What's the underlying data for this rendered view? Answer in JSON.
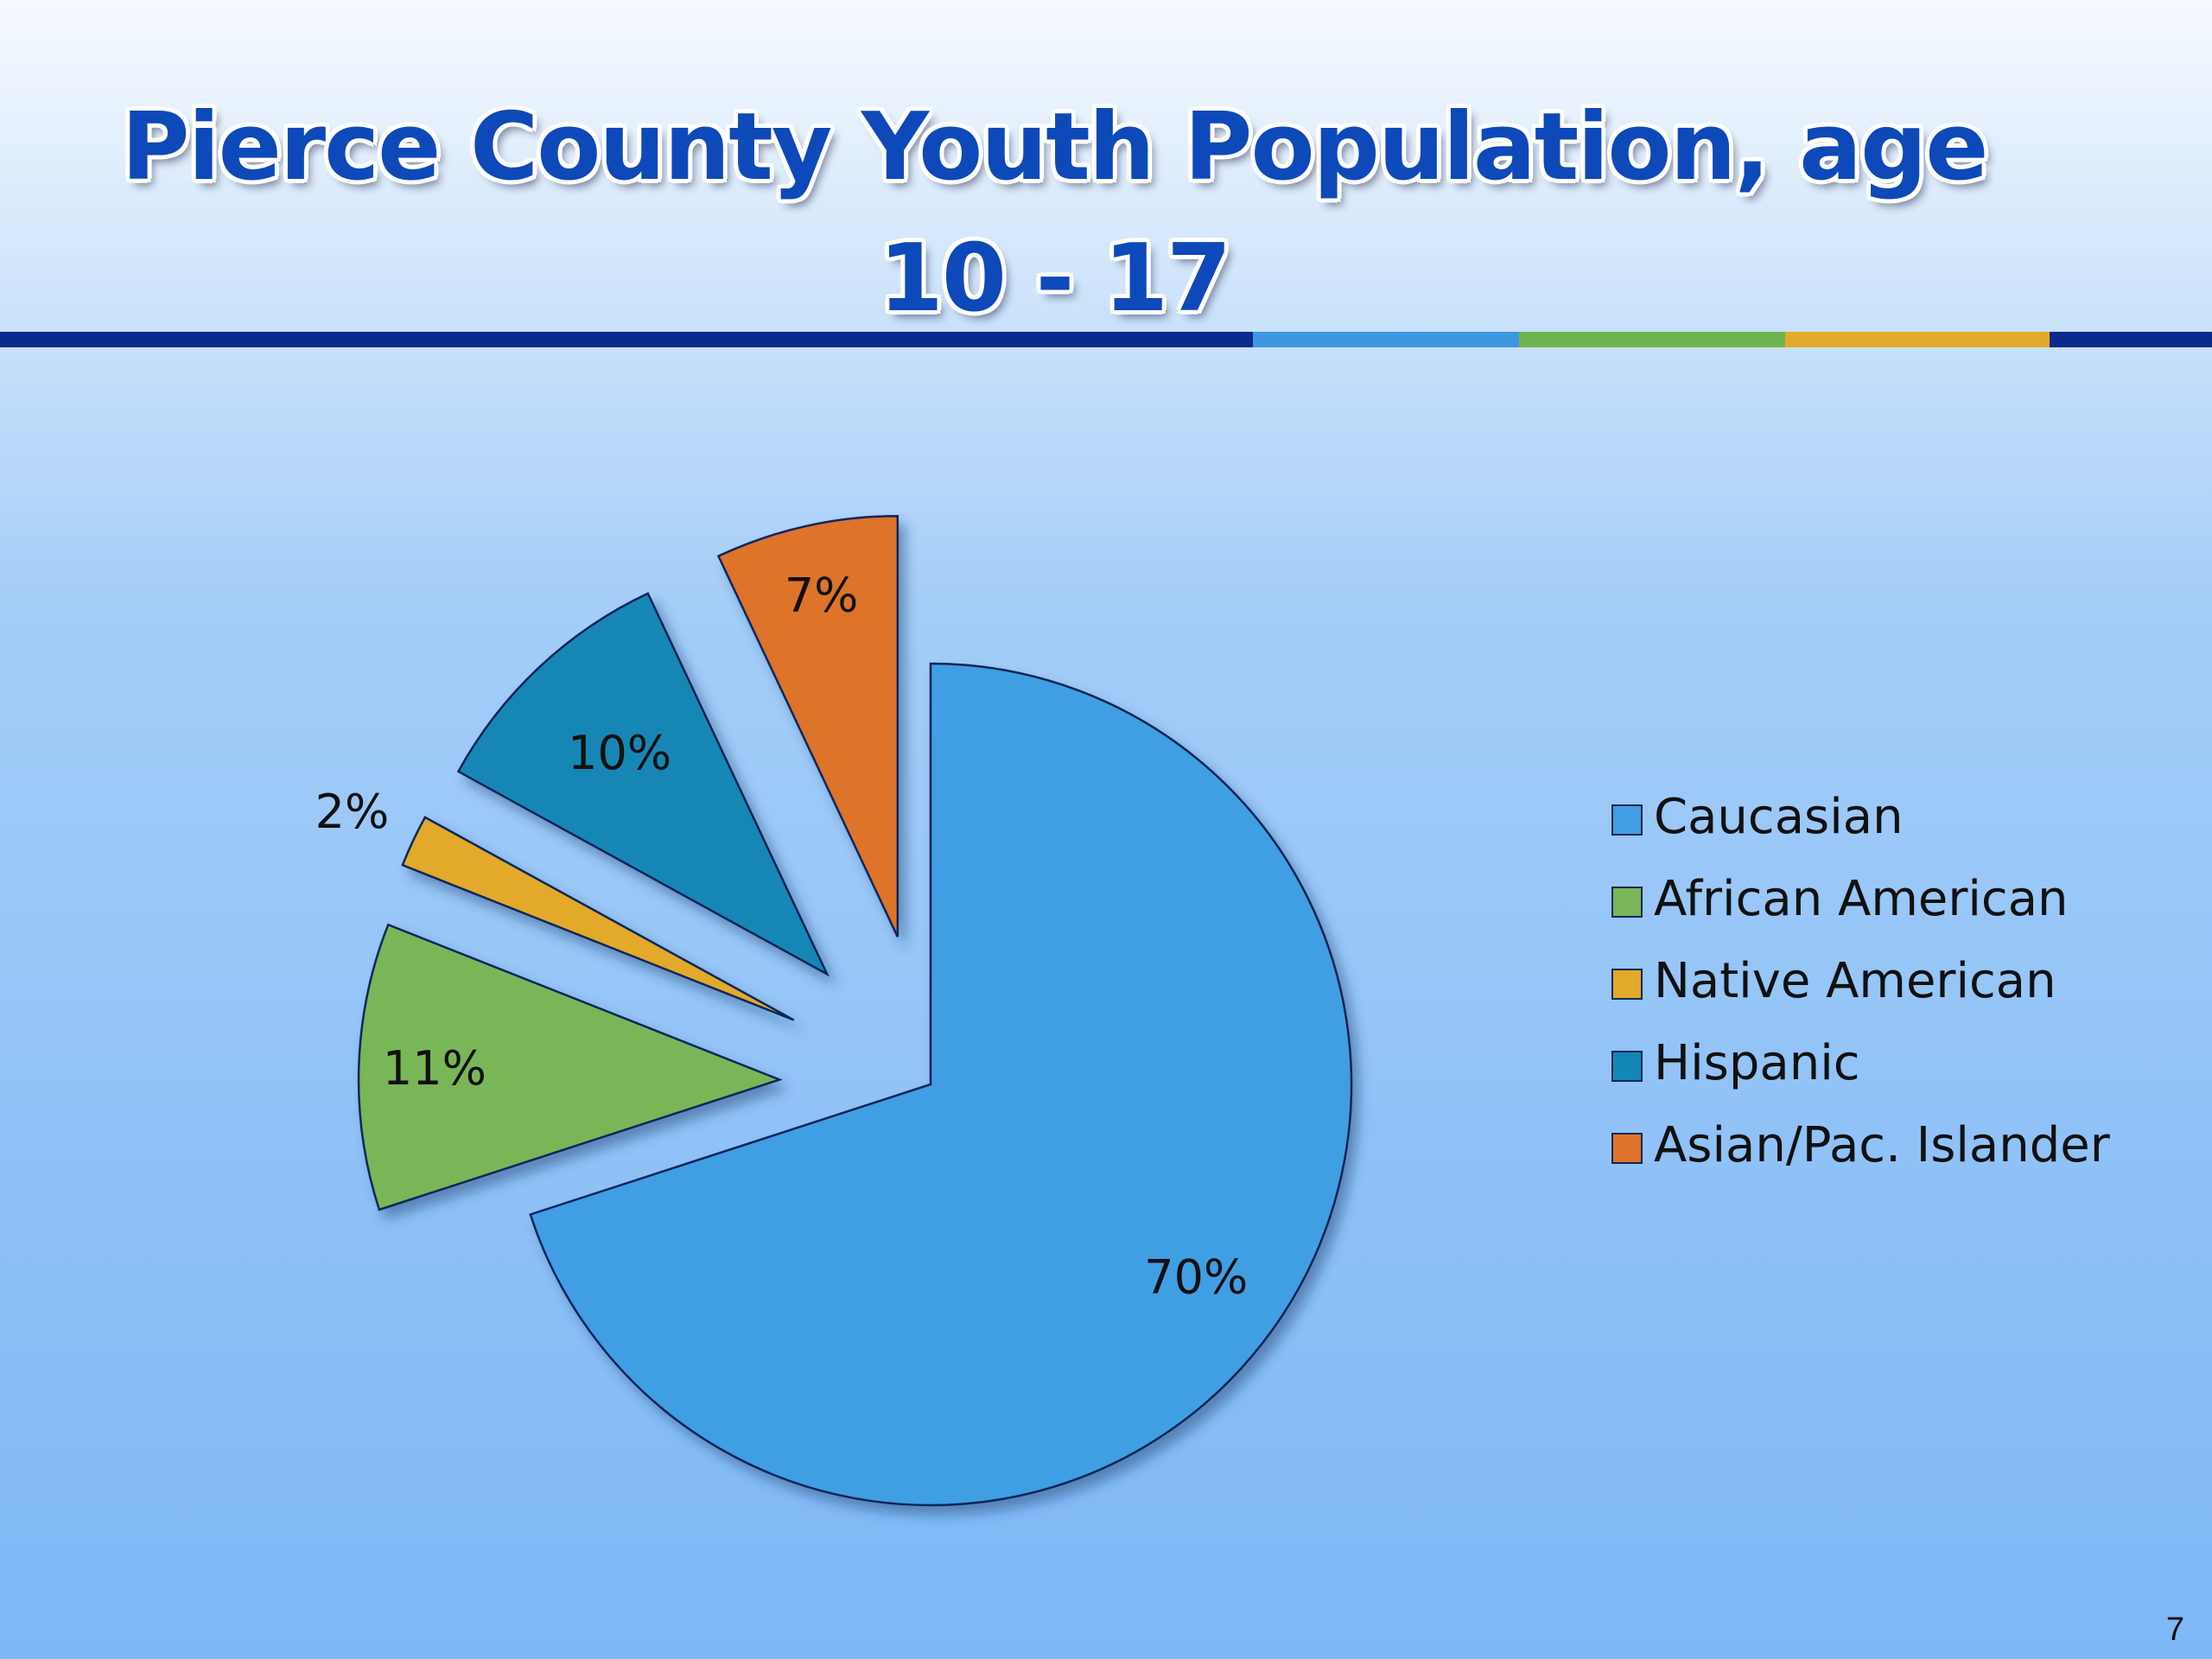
{
  "slide": {
    "title": "Pierce County Youth Population, age 10 - 17",
    "page_number": "7"
  },
  "colors": {
    "rule_dark": "#0a2a8c",
    "rule_light_blue": "#3d98e0",
    "rule_green": "#6fb34e",
    "rule_gold": "#e2a92a"
  },
  "chart_data": {
    "type": "pie",
    "title": "Pierce County Youth Population, age 10 - 17",
    "legend_position": "right",
    "slices": [
      {
        "name": "Caucasian",
        "value": 70,
        "label": "70%",
        "color": "#419ee2"
      },
      {
        "name": "African American",
        "value": 11,
        "label": "11%",
        "color": "#79b658"
      },
      {
        "name": "Native American",
        "value": 2,
        "label": "2%",
        "color": "#e2a92a"
      },
      {
        "name": "Hispanic",
        "value": 10,
        "label": "10%",
        "color": "#1287b5"
      },
      {
        "name": "Asian/Pac. Islander",
        "value": 7,
        "label": "7%",
        "color": "#de732b"
      }
    ]
  }
}
